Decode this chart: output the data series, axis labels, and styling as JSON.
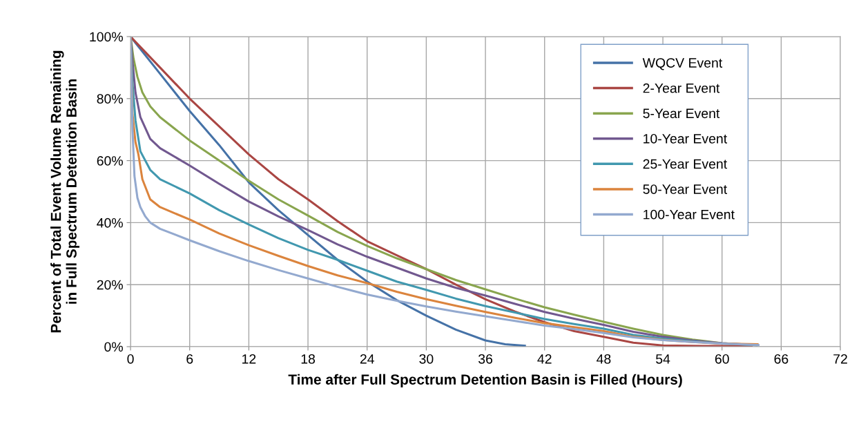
{
  "chart_data": {
    "type": "line",
    "xlabel": "Time after Full Spectrum Detention Basin is Filled (Hours)",
    "ylabel": "Percent of Total Event Volume Remaining\nin Full Spectrum Detention Basin",
    "xlim": [
      0,
      72
    ],
    "xticks": [
      0,
      6,
      12,
      18,
      24,
      30,
      36,
      42,
      48,
      54,
      60,
      66,
      72
    ],
    "ylim": [
      0,
      100
    ],
    "yticks": [
      {
        "value": 0,
        "label": "0%"
      },
      {
        "value": 20,
        "label": "20%"
      },
      {
        "value": 40,
        "label": "40%"
      },
      {
        "value": 60,
        "label": "60%"
      },
      {
        "value": 80,
        "label": "80%"
      },
      {
        "value": 100,
        "label": "100%"
      }
    ],
    "grid": true,
    "legend": "top right",
    "marker": "none",
    "line_style": "solid",
    "series": [
      {
        "name": "WQCV Event",
        "color": "#4572a7",
        "x": [
          0,
          3,
          6,
          9,
          12,
          15,
          18,
          21,
          24,
          27,
          30,
          33,
          36,
          38,
          40
        ],
        "values": [
          100,
          88,
          76,
          65,
          53,
          44,
          36,
          28,
          21,
          15,
          10,
          5.5,
          2,
          0.8,
          0.3
        ]
      },
      {
        "name": "2-Year Event",
        "color": "#aa4643",
        "x": [
          0,
          3,
          6,
          9,
          12,
          15,
          18,
          21,
          24,
          27,
          30,
          33,
          36,
          39,
          42,
          45,
          48,
          51,
          54,
          58,
          63
        ],
        "values": [
          100,
          90,
          80,
          71,
          62,
          54,
          47.5,
          40.5,
          34,
          29.5,
          25,
          20,
          15.3,
          11.3,
          7.9,
          5,
          3.2,
          1.3,
          0.4,
          0.2,
          0.2
        ]
      },
      {
        "name": "5-Year Event",
        "color": "#89a54e",
        "x": [
          0,
          0.3,
          0.7,
          1.2,
          2,
          3,
          6,
          9,
          12,
          15,
          18,
          21,
          24,
          27,
          30,
          33,
          36,
          39,
          42,
          45,
          48,
          51,
          54,
          57,
          60,
          63.5
        ],
        "values": [
          100,
          93,
          87,
          82,
          77.5,
          74,
          66.5,
          60,
          53.5,
          47.5,
          42.3,
          37,
          32.5,
          28.5,
          25,
          21.5,
          18.5,
          15.5,
          12.7,
          10.3,
          8,
          5.8,
          3.8,
          2.3,
          1.1,
          0.5
        ]
      },
      {
        "name": "10-Year Event",
        "color": "#71588f",
        "x": [
          0,
          0.2,
          0.5,
          1,
          2,
          3,
          6,
          9,
          12,
          15,
          18,
          21,
          24,
          27,
          30,
          33,
          36,
          39,
          42,
          45,
          48,
          51,
          54,
          57,
          60,
          63.5
        ],
        "values": [
          100,
          92,
          82,
          74,
          67,
          64,
          58.4,
          52.5,
          46.8,
          42,
          37.6,
          33,
          29,
          25.5,
          22,
          19,
          16.5,
          13.8,
          11.2,
          9,
          7,
          4.8,
          3.2,
          2,
          1.1,
          0.5
        ]
      },
      {
        "name": "25-Year Event",
        "color": "#4198af",
        "x": [
          0,
          0.2,
          0.5,
          1,
          2,
          3,
          6,
          9,
          12,
          15,
          18,
          21,
          24,
          27,
          30,
          33,
          36,
          39,
          42,
          45,
          48,
          51,
          54,
          57,
          60,
          63.5
        ],
        "values": [
          100,
          85,
          73,
          63,
          57,
          54,
          49.4,
          44,
          39.4,
          35,
          31.2,
          28,
          24.5,
          21,
          18.3,
          15.5,
          13.1,
          11,
          8.9,
          7.3,
          5.8,
          3.8,
          2.6,
          1.7,
          1,
          0.5
        ]
      },
      {
        "name": "50-Year Event",
        "color": "#db843d",
        "x": [
          0,
          0.2,
          0.5,
          0.8,
          1.2,
          2,
          3,
          6,
          9,
          12,
          15,
          18,
          21,
          24,
          27,
          30,
          33,
          36,
          39,
          42,
          45,
          48,
          51,
          54,
          57,
          60,
          63.6
        ],
        "values": [
          100,
          75,
          66,
          62,
          54,
          47.5,
          45,
          41,
          36.5,
          32.7,
          29.3,
          26,
          23,
          20.5,
          17.7,
          15.3,
          13.2,
          11.2,
          9.3,
          7.6,
          6.3,
          5,
          3.2,
          2.2,
          1.5,
          1,
          0.8
        ]
      },
      {
        "name": "100-Year Event",
        "color": "#93a9cf",
        "x": [
          0,
          0.2,
          0.4,
          0.7,
          1,
          1.5,
          2,
          3,
          6,
          9,
          12,
          15,
          18,
          21,
          24,
          27,
          30,
          33,
          36,
          39,
          42,
          45,
          48,
          51,
          54,
          57,
          60,
          63.7
        ],
        "values": [
          100,
          70,
          55,
          48,
          45,
          42,
          40,
          38,
          34.3,
          30.8,
          27.6,
          24.7,
          22,
          19.3,
          16.8,
          14.8,
          13,
          11.3,
          9.8,
          8.3,
          6.8,
          5.7,
          4.4,
          3,
          2.1,
          1.5,
          1,
          0.5
        ]
      }
    ]
  }
}
